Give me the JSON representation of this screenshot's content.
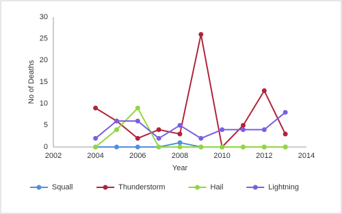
{
  "chart_data": {
    "type": "line",
    "x": [
      2004,
      2005,
      2006,
      2007,
      2008,
      2009,
      2010,
      2011,
      2012,
      2013
    ],
    "series": [
      {
        "name": "Squall",
        "color": "#4f8fdf",
        "values": [
          0,
          0,
          0,
          0,
          1,
          0,
          0,
          0,
          0,
          0
        ]
      },
      {
        "name": "Thunderstorm",
        "color": "#b0243a",
        "values": [
          9,
          6,
          2,
          4,
          3,
          26,
          0,
          5,
          13,
          3
        ]
      },
      {
        "name": "Hail",
        "color": "#8fd83a",
        "values": [
          0,
          4,
          9,
          0,
          0,
          0,
          0,
          0,
          0,
          0
        ]
      },
      {
        "name": "Lightning",
        "color": "#7a5fe0",
        "values": [
          2,
          6,
          6,
          2,
          5,
          2,
          4,
          4,
          4,
          8
        ]
      }
    ],
    "xlabel": "Year",
    "ylabel": "No of Deaths",
    "xlim": [
      2002,
      2014
    ],
    "xticks": [
      2002,
      2004,
      2006,
      2008,
      2010,
      2012,
      2014
    ],
    "ylim": [
      0,
      30
    ],
    "yticks": [
      0,
      5,
      10,
      15,
      20,
      25,
      30
    ],
    "grid": false,
    "legend": "bottom"
  }
}
